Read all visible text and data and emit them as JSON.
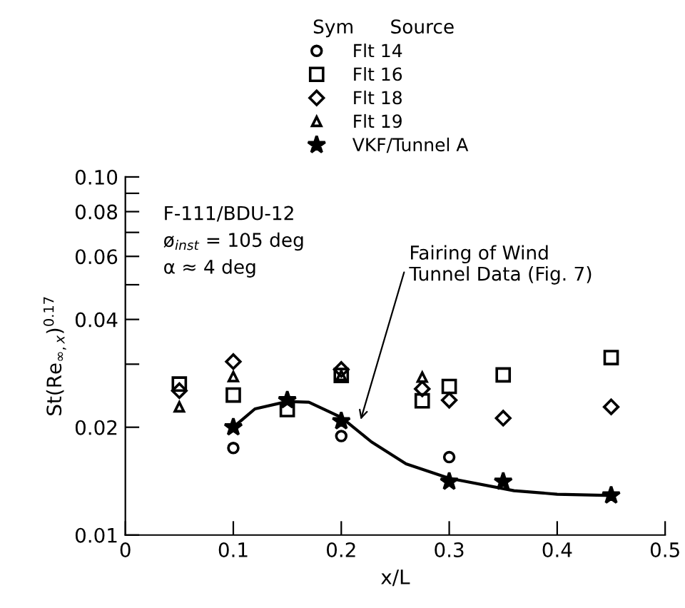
{
  "chart_data": {
    "type": "scatter",
    "xlabel": "x/L",
    "ylabel": "St(Re$_{∞,x}$)$^{0.17}$",
    "legend_title": "Sym      Source",
    "legend": "top",
    "log": "y",
    "xlim": [
      0,
      0.5
    ],
    "xticks": [
      0,
      0.1,
      0.2,
      0.3,
      0.4,
      0.5
    ],
    "ylim": [
      0.01,
      0.1
    ],
    "yticks": [
      0.01,
      0.02,
      {
        "value": 0.03,
        "label": null
      },
      0.04,
      {
        "value": 0.05,
        "label": null
      },
      0.06,
      {
        "value": 0.07,
        "label": null
      },
      0.08,
      {
        "value": 0.09,
        "label": null
      },
      {
        "value": 0.1,
        "label": "0.10"
      }
    ],
    "grid": false,
    "series": [
      {
        "name": "Flt 14",
        "color": "#000000",
        "marker": "circle",
        "x": [
          0.1,
          0.2,
          0.3
        ],
        "values": [
          0.0175,
          0.0189,
          0.0165
        ]
      },
      {
        "name": "Flt 16",
        "color": "#000000",
        "marker": "square",
        "x": [
          0.05,
          0.1,
          0.15,
          0.2,
          0.275,
          0.3,
          0.35,
          0.45
        ],
        "values": [
          0.0264,
          0.0246,
          0.0224,
          0.0279,
          0.0237,
          0.026,
          0.028,
          0.0313
        ]
      },
      {
        "name": "Flt 18",
        "color": "#000000",
        "marker": "diamond",
        "x": [
          0.05,
          0.1,
          0.2,
          0.275,
          0.3,
          0.35,
          0.45
        ],
        "values": [
          0.0253,
          0.0305,
          0.029,
          0.0256,
          0.0238,
          0.0212,
          0.0228
        ]
      },
      {
        "name": "Flt 19",
        "color": "#000000",
        "marker": "triangle",
        "x": [
          0.05,
          0.1,
          0.2,
          0.275
        ],
        "values": [
          0.0228,
          0.0277,
          0.0279,
          0.0276
        ]
      },
      {
        "name": "VKF/Tunnel A",
        "color": "#000000",
        "marker": "star",
        "x": [
          0.1,
          0.15,
          0.2,
          0.3,
          0.35,
          0.45
        ],
        "values": [
          0.02,
          0.0238,
          0.0208,
          0.0141,
          0.0141,
          0.0129
        ]
      },
      {
        "type": "line",
        "color": "#000000",
        "marker": "none",
        "line_style": "solid",
        "x": [
          0.1,
          0.12,
          0.15,
          0.17,
          0.2,
          0.228,
          0.26,
          0.3,
          0.36,
          0.4,
          0.45
        ],
        "values": [
          0.02,
          0.0225,
          0.0236,
          0.0235,
          0.0213,
          0.0182,
          0.0158,
          0.0144,
          0.0133,
          0.013,
          0.0129
        ]
      }
    ],
    "annotations": [
      "F-111/BDU-12",
      "ø$_{inst}$ = 105 deg",
      "α ≈ 4 deg",
      {
        "text": "Fairing of Wind\nTunnel Data (Fig. 7)",
        "x": 0.217,
        "y": 0.0205
      }
    ]
  }
}
